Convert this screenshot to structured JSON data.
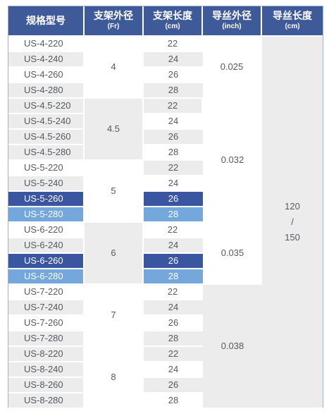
{
  "headers": [
    {
      "main": "规格型号",
      "sub": ""
    },
    {
      "main": "支架外径",
      "sub": "(Fr)"
    },
    {
      "main": "支架长度",
      "sub": "(cm)"
    },
    {
      "main": "导丝外径",
      "sub": "(inch)"
    },
    {
      "main": "导丝长度",
      "sub": "(cm)"
    }
  ],
  "rows": [
    {
      "model": "US-4-220",
      "length": "22"
    },
    {
      "model": "US-4-240",
      "length": "24"
    },
    {
      "model": "US-4-260",
      "length": "26"
    },
    {
      "model": "US-4-280",
      "length": "28"
    },
    {
      "model": "US-4.5-220",
      "length": "22"
    },
    {
      "model": "US-4.5-240",
      "length": "24"
    },
    {
      "model": "US-4.5-260",
      "length": "26"
    },
    {
      "model": "US-4.5-280",
      "length": "28"
    },
    {
      "model": "US-5-220",
      "length": "22"
    },
    {
      "model": "US-5-240",
      "length": "24"
    },
    {
      "model": "US-5-260",
      "length": "26"
    },
    {
      "model": "US-5-280",
      "length": "28"
    },
    {
      "model": "US-6-220",
      "length": "22"
    },
    {
      "model": "US-6-240",
      "length": "24"
    },
    {
      "model": "US-6-260",
      "length": "26"
    },
    {
      "model": "US-6-280",
      "length": "28"
    },
    {
      "model": "US-7-220",
      "length": "22"
    },
    {
      "model": "US-7-240",
      "length": "24"
    },
    {
      "model": "US-7-260",
      "length": "26"
    },
    {
      "model": "US-7-280",
      "length": "28"
    },
    {
      "model": "US-8-220",
      "length": "22"
    },
    {
      "model": "US-8-240",
      "length": "24"
    },
    {
      "model": "US-8-260",
      "length": "26"
    },
    {
      "model": "US-8-280",
      "length": "28"
    }
  ],
  "stent_diameters": [
    "4",
    "4.5",
    "5",
    "6",
    "7",
    "8"
  ],
  "guidewire_diameters": [
    "0.025",
    "0.032",
    "0.035",
    "0.038"
  ],
  "guidewire_length": {
    "line1": "120",
    "sep": "/",
    "line2": "150"
  },
  "colors": {
    "header": "#3f5a99",
    "highlight_dark": "#3b56a0",
    "highlight_light": "#74a8dc",
    "stripe": "#ececec"
  }
}
